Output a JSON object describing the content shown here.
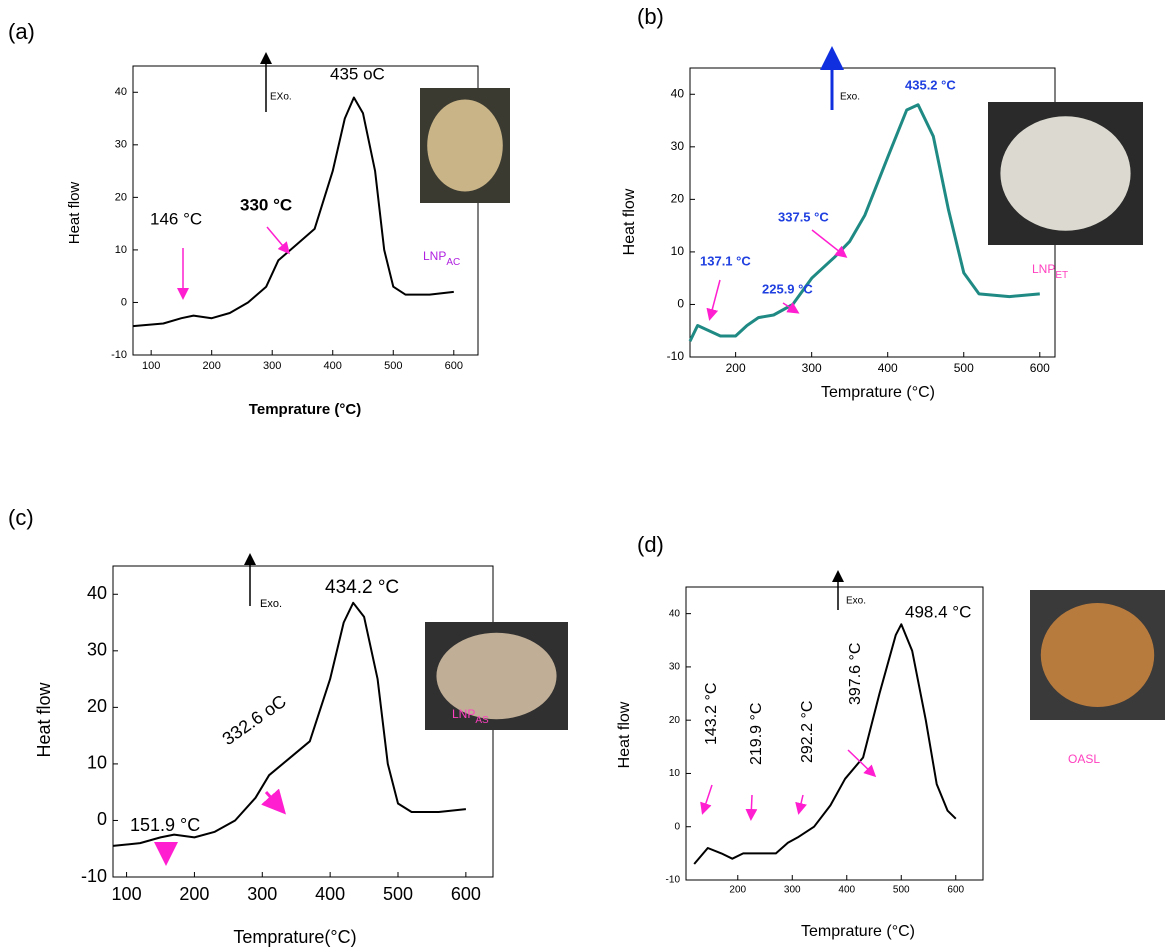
{
  "chart_data": [
    {
      "type": "line",
      "panel_label": "(a)",
      "y_label": "Heat flow",
      "x_label": "Temprature (°C)",
      "annotations": [
        "146 °C",
        "330 °C",
        "435 oC"
      ],
      "exo_label": "EXo.",
      "sample_label": {
        "text": "LNP",
        "sub": "AC"
      },
      "xlim": [
        70,
        640
      ],
      "ylim": [
        -10,
        45
      ],
      "xticks": [
        100,
        200,
        300,
        400,
        500,
        600
      ],
      "yticks": [
        -10,
        0,
        10,
        20,
        30,
        40
      ],
      "x": [
        70,
        120,
        150,
        170,
        200,
        230,
        260,
        290,
        310,
        340,
        370,
        400,
        420,
        435,
        450,
        470,
        485,
        500,
        520,
        560,
        600
      ],
      "series": [
        {
          "color": "#000000",
          "values": [
            -4.5,
            -4,
            -3,
            -2.5,
            -3,
            -2,
            0,
            3,
            8,
            11,
            14,
            25,
            35,
            39,
            36,
            25,
            10,
            3,
            1.5,
            1.5,
            2
          ]
        }
      ]
    },
    {
      "type": "line",
      "panel_label": "(b)",
      "y_label": "Heat flow",
      "x_label": "Temprature (°C)",
      "annotations": [
        "137.1 °C",
        "225.9 °C",
        "337.5 °C",
        "435.2 °C"
      ],
      "exo_label": "Exo.",
      "sample_label": {
        "text": "LNP",
        "sub": "ET"
      },
      "xlim": [
        140,
        620
      ],
      "ylim": [
        -10,
        45
      ],
      "xticks": [
        200,
        300,
        400,
        500,
        600
      ],
      "yticks": [
        -10,
        0,
        10,
        20,
        30,
        40
      ],
      "x": [
        140,
        150,
        165,
        180,
        200,
        215,
        230,
        250,
        275,
        300,
        330,
        350,
        370,
        400,
        425,
        440,
        460,
        480,
        500,
        520,
        560,
        600
      ],
      "series": [
        {
          "color": "#1f8a84",
          "values": [
            -7,
            -4,
            -5,
            -6,
            -6,
            -4,
            -2.5,
            -2,
            0,
            5,
            9,
            12,
            17,
            28,
            37,
            38,
            32,
            18,
            6,
            2,
            1.5,
            2
          ]
        }
      ]
    },
    {
      "type": "line",
      "panel_label": "(c)",
      "y_label": "Heat flow",
      "x_label": "Temprature(°C)",
      "annotations": [
        "151.9 °C",
        "332.6 oC",
        "434.2 °C"
      ],
      "exo_label": "Exo.",
      "sample_label": {
        "text": "LNP",
        "sub": "AS"
      },
      "xlim": [
        80,
        640
      ],
      "ylim": [
        -10,
        45
      ],
      "xticks": [
        100,
        200,
        300,
        400,
        500,
        600
      ],
      "yticks": [
        -10,
        0,
        10,
        20,
        30,
        40
      ],
      "x": [
        80,
        120,
        150,
        170,
        200,
        230,
        260,
        290,
        310,
        340,
        370,
        400,
        420,
        434,
        450,
        470,
        485,
        500,
        520,
        560,
        600
      ],
      "series": [
        {
          "color": "#000000",
          "values": [
            -4.5,
            -4,
            -3,
            -2.5,
            -3,
            -2,
            0,
            4,
            8,
            11,
            14,
            25,
            35,
            38.5,
            36,
            25,
            10,
            3,
            1.5,
            1.5,
            2
          ]
        }
      ]
    },
    {
      "type": "line",
      "panel_label": "(d)",
      "y_label": "Heat flow",
      "x_label": "Temprature (°C)",
      "annotations": [
        "143.2 °C",
        "219.9 °C",
        "292.2 °C",
        "397.6 °C",
        "498.4 °C"
      ],
      "exo_label": "Exo.",
      "sample_label": {
        "text": "OASL",
        "sub": null
      },
      "xlim": [
        105,
        650
      ],
      "ylim": [
        -10,
        45
      ],
      "xticks": [
        200,
        300,
        400,
        500,
        600
      ],
      "yticks": [
        -10,
        0,
        10,
        20,
        30,
        40
      ],
      "x": [
        120,
        145,
        170,
        190,
        210,
        220,
        270,
        292,
        310,
        340,
        370,
        397,
        430,
        460,
        490,
        500,
        520,
        545,
        565,
        585,
        600
      ],
      "series": [
        {
          "color": "#000000",
          "values": [
            -7,
            -4,
            -5,
            -6,
            -5,
            -5,
            -5,
            -3,
            -2,
            0,
            4,
            9,
            13,
            25,
            36,
            38,
            33,
            20,
            8,
            3,
            1.5
          ]
        }
      ]
    }
  ]
}
